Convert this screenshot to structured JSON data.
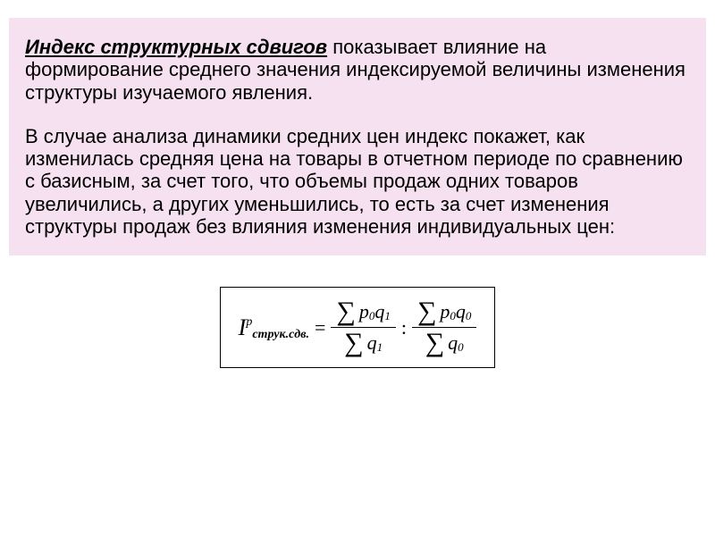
{
  "text_box": {
    "background_color": "#f6e1f0",
    "term_style": {
      "bold": true,
      "italic": true,
      "underline": true,
      "fontsize": 22
    },
    "body_fontsize": 22,
    "term": "Индекс структурных сдвигов",
    "para1_rest": " показывает влияние на формирование среднего значения индексируемой величины изменения структуры изучаемого явления.",
    "para2": "В случае анализа динамики средних цен индекс покажет, как изменилась средняя цена на товары в отчетном периоде по сравнению с базисным, за счет того, что объемы продаж одних товаров увеличились, а других уменьшились, то есть за счет изменения структуры продаж без влияния изменения индивидуальных цен:"
  },
  "formula": {
    "border_color": "#000000",
    "font_family": "Times New Roman",
    "lhs_var": "I",
    "lhs_sup": "p",
    "lhs_sub": "струк.сдв.",
    "eq_sign": "=",
    "frac1": {
      "num_sigma": "∑",
      "num_expr": "p",
      "num_sub1": "0",
      "num_expr2": "q",
      "num_sub2": "1",
      "den_sigma": "∑",
      "den_expr": "q",
      "den_sub": "1"
    },
    "divider": ":",
    "frac2": {
      "num_sigma": "∑",
      "num_expr": "p",
      "num_sub1": "0",
      "num_expr2": "q",
      "num_sub2": "0",
      "den_sigma": "∑",
      "den_expr": "q",
      "den_sub": "0"
    }
  }
}
